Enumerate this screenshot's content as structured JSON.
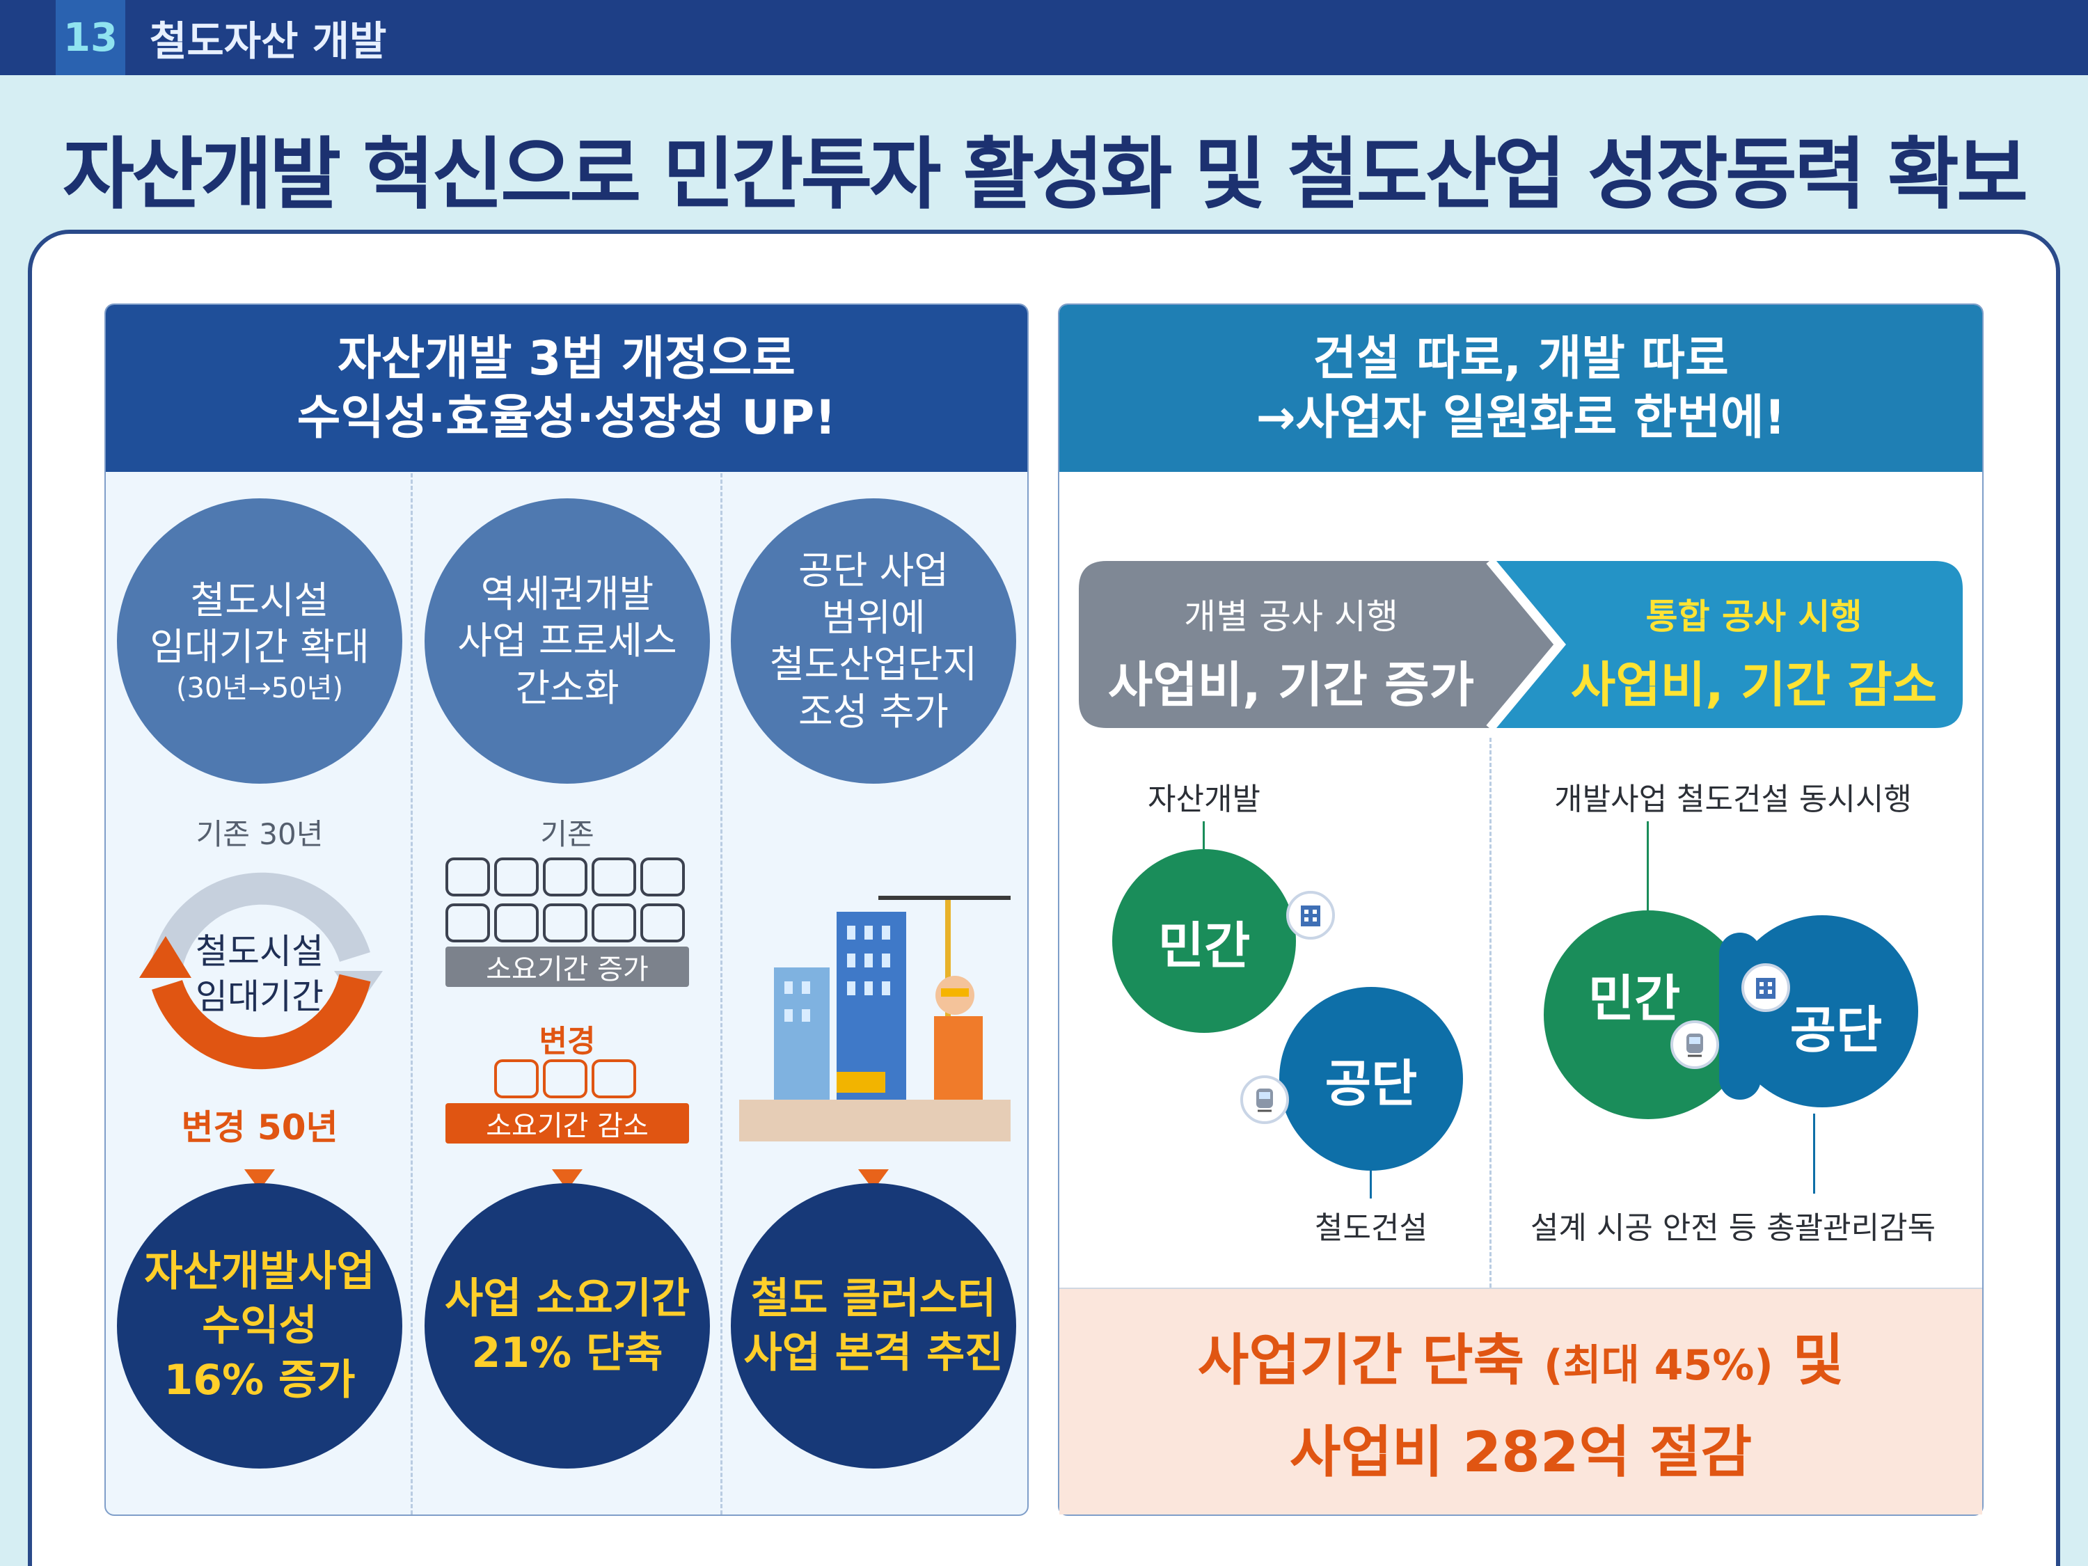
{
  "header": {
    "section_number": "13",
    "section_title": "철도자산 개발"
  },
  "main_title": "자산개발 혁신으로 민간투자 활성화 및 철도산업 성장동력 확보",
  "left_panel": {
    "heading_line1": "자산개발 3법 개정으로",
    "heading_line2": "수익성·효율성·성장성 UP!",
    "col1": {
      "circle_line1": "철도시설",
      "circle_line2": "임대기간 확대",
      "circle_line3": "(30년→50년)",
      "before_label": "기존 30년",
      "cycle_line1": "철도시설",
      "cycle_line2": "임대기간",
      "after_label": "변경 50년",
      "result_line1": "자산개발사업",
      "result_line2": "수익성",
      "result_line3": "16% 증가"
    },
    "col2": {
      "circle_line1": "역세권개발",
      "circle_line2": "사업 프로세스",
      "circle_line3": "간소화",
      "before_label": "기존",
      "before_bar": "소요기간 증가",
      "after_label": "변경",
      "after_bar": "소요기간 감소",
      "result_line1": "사업 소요기간",
      "result_line2": "21% 단축"
    },
    "col3": {
      "circle_line1": "공단 사업",
      "circle_line2": "범위에",
      "circle_line3": "철도산업단지",
      "circle_line4": "조성 추가",
      "result_line1": "철도 클러스터",
      "result_line2": "사업 본격 추진"
    }
  },
  "right_panel": {
    "heading_line1": "건설 따로, 개발 따로",
    "heading_line2": "→사업자 일원화로 한번에!",
    "left_arrow": {
      "top": "개별 공사 시행",
      "bottom": "사업비, 기간 증가"
    },
    "right_arrow": {
      "top": "통합 공사 시행",
      "bottom": "사업비, 기간 감소"
    },
    "left_diagram": {
      "top_label": "자산개발",
      "private": "민간",
      "public": "공단",
      "bottom_label": "철도건설"
    },
    "right_diagram": {
      "top_label": "개발사업 철도건설 동시시행",
      "private": "민간",
      "public": "공단",
      "bottom_label": "설계 시공 안전 등 총괄관리감독"
    },
    "result_line1_a": "사업기간 단축",
    "result_line1_b": "(최대 45%)",
    "result_line1_c": "및",
    "result_line2": "사업비 282억 절감"
  },
  "colors": {
    "navy": "#1e3f86",
    "accent_orange": "#e05512",
    "yellow": "#ffcf2a",
    "green": "#1a8d5a",
    "blue": "#0e6fa8"
  }
}
